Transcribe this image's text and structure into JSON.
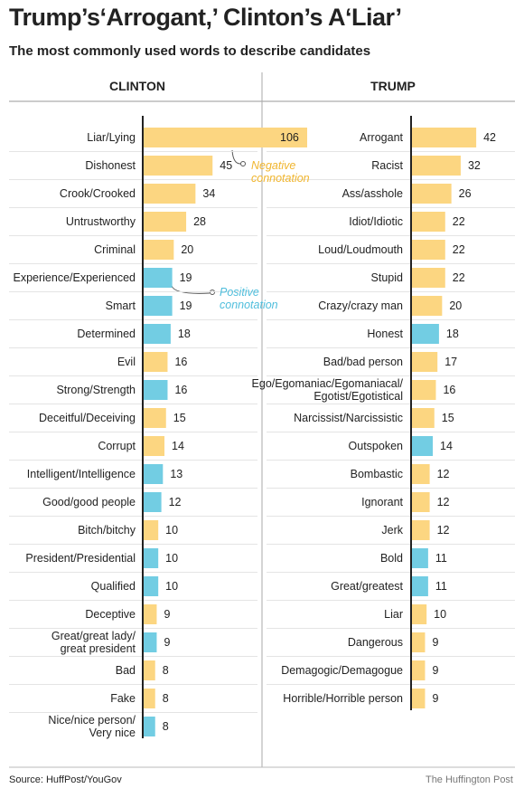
{
  "title": "Trump’s‘Arrogant,’ Clinton’s A‘Liar’",
  "subtitle": "The most commonly used words to describe candidates",
  "source": "Source: HuffPost/YouGov",
  "credit": "The Huffington Post",
  "chart_data": [
    {
      "type": "bar",
      "orientation": "horizontal",
      "title": "CLINTON",
      "categories": [
        "Liar/Lying",
        "Dishonest",
        "Crook/Crooked",
        "Untrustworthy",
        "Criminal",
        "Experience/Experienced",
        "Smart",
        "Determined",
        "Evil",
        "Strong/Strength",
        "Deceitful/Deceiving",
        "Corrupt",
        "Intelligent/Intelligence",
        "Good/good people",
        "Bitch/bitchy",
        "President/Presidential",
        "Qualified",
        "Deceptive",
        "Great/great lady/\ngreat president",
        "Bad",
        "Fake",
        "Nice/nice person/\nVery nice"
      ],
      "values": [
        106,
        45,
        34,
        28,
        20,
        19,
        19,
        18,
        16,
        16,
        15,
        14,
        13,
        12,
        10,
        10,
        10,
        9,
        9,
        8,
        8,
        8
      ],
      "colors": [
        "#fcd681",
        "#fcd681",
        "#fcd681",
        "#fcd681",
        "#fcd681",
        "#72cde3",
        "#72cde3",
        "#72cde3",
        "#fcd681",
        "#72cde3",
        "#fcd681",
        "#fcd681",
        "#72cde3",
        "#72cde3",
        "#fcd681",
        "#72cde3",
        "#72cde3",
        "#fcd681",
        "#72cde3",
        "#fcd681",
        "#fcd681",
        "#72cde3"
      ],
      "annotations": [
        {
          "text": "Negative\nconnotation",
          "color": "#f0b52e"
        },
        {
          "text": "Positive\nconnotation",
          "color": "#4fbedc"
        }
      ]
    },
    {
      "type": "bar",
      "orientation": "horizontal",
      "title": "TRUMP",
      "categories": [
        "Arrogant",
        "Racist",
        "Ass/asshole",
        "Idiot/Idiotic",
        "Loud/Loudmouth",
        "Stupid",
        "Crazy/crazy man",
        "Honest",
        "Bad/bad person",
        "Ego/Egomaniac/Egomaniacal/\nEgotist/Egotistical",
        "Narcissist/Narcissistic",
        "Outspoken",
        "Bombastic",
        "Ignorant",
        "Jerk",
        "Bold",
        "Great/greatest",
        "Liar",
        "Dangerous",
        "Demagogic/Demagogue",
        "Horrible/Horrible person"
      ],
      "values": [
        42,
        32,
        26,
        22,
        22,
        22,
        20,
        18,
        17,
        16,
        15,
        14,
        12,
        12,
        12,
        11,
        11,
        10,
        9,
        9,
        9
      ],
      "colors": [
        "#fcd681",
        "#fcd681",
        "#fcd681",
        "#fcd681",
        "#fcd681",
        "#fcd681",
        "#fcd681",
        "#72cde3",
        "#fcd681",
        "#fcd681",
        "#fcd681",
        "#72cde3",
        "#fcd681",
        "#fcd681",
        "#fcd681",
        "#72cde3",
        "#72cde3",
        "#fcd681",
        "#fcd681",
        "#fcd681",
        "#fcd681"
      ]
    }
  ]
}
